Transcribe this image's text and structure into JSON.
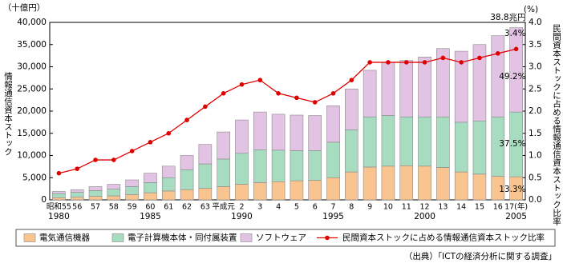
{
  "chart_data": {
    "type": "bar-line",
    "y_unit_label": "（十億円）",
    "y2_unit_label": "(%)",
    "ylabel": "情報通信資本ストック",
    "y2label": "民間資本ストックに占める情報通信資本ストック比率",
    "categories": [
      "昭和55",
      "56",
      "57",
      "58",
      "59",
      "60",
      "61",
      "62",
      "63",
      "平成元",
      "2",
      "3",
      "4",
      "5",
      "6",
      "7",
      "8",
      "9",
      "10",
      "11",
      "12",
      "13",
      "14",
      "15",
      "16",
      "17(年)"
    ],
    "year_labels": [
      "1980",
      null,
      null,
      null,
      null,
      "1985",
      null,
      null,
      null,
      null,
      "1990",
      null,
      null,
      null,
      null,
      "1995",
      null,
      null,
      null,
      null,
      "2000",
      null,
      null,
      null,
      null,
      "2005"
    ],
    "series": [
      {
        "name": "電気通信機器",
        "color": "#f9c48f",
        "values": [
          500,
          600,
          800,
          900,
          1200,
          1600,
          2000,
          2300,
          2600,
          3000,
          3500,
          3900,
          4100,
          4300,
          4400,
          5000,
          6300,
          7400,
          7600,
          7700,
          7600,
          7300,
          6300,
          5800,
          5300,
          5200
        ]
      },
      {
        "name": "電子計算機本体・同付属装置",
        "color": "#a8dcc0",
        "values": [
          900,
          1100,
          1300,
          1500,
          1800,
          2300,
          3000,
          4500,
          5500,
          6200,
          7000,
          7400,
          7100,
          6800,
          6700,
          8000,
          9500,
          11300,
          11400,
          11000,
          11100,
          11400,
          11200,
          12000,
          13400,
          14600
        ]
      },
      {
        "name": "ソフトウェア",
        "color": "#e3c3e3",
        "values": [
          500,
          600,
          900,
          1100,
          1500,
          2100,
          2600,
          3200,
          4400,
          6100,
          7500,
          8500,
          8100,
          8000,
          7900,
          8200,
          9200,
          10500,
          12000,
          12700,
          13500,
          15400,
          16000,
          17200,
          18300,
          19000
        ]
      },
      {
        "name": "民間資本ストックに占める情報通信資本ストック比率",
        "color": "#e00000",
        "axis": "y2",
        "values": [
          0.6,
          0.7,
          0.9,
          0.9,
          1.1,
          1.3,
          1.5,
          1.8,
          2.1,
          2.4,
          2.6,
          2.7,
          2.4,
          2.3,
          2.2,
          2.4,
          2.7,
          3.1,
          3.1,
          3.1,
          3.1,
          3.2,
          3.1,
          3.2,
          3.3,
          3.4
        ]
      }
    ],
    "annotations": [
      "38.8兆円",
      "3.4%",
      "49.2%",
      "37.5%",
      "13.3%"
    ],
    "ylim": [
      0,
      40000
    ],
    "yticks": [
      0,
      {
        "value": 5000,
        "label": "5,000"
      },
      {
        "value": 10000,
        "label": "10,000"
      },
      {
        "value": 15000,
        "label": "15,000"
      },
      {
        "value": 20000,
        "label": "20,000"
      },
      {
        "value": 25000,
        "label": "25,000"
      },
      {
        "value": 30000,
        "label": "30,000"
      },
      {
        "value": 35000,
        "label": "35,000"
      },
      {
        "value": 40000,
        "label": "40,000"
      }
    ],
    "y2lim": [
      0,
      4
    ],
    "y2ticks": [
      {
        "value": 0,
        "label": "0.0"
      },
      0.5,
      {
        "value": 1,
        "label": "1.0"
      },
      1.5,
      {
        "value": 2,
        "label": "2.0"
      },
      2.5,
      {
        "value": 3,
        "label": "3.0"
      },
      3.5,
      {
        "value": 4,
        "label": "4.0"
      }
    ],
    "source": "（出典）「ICTの経済分析に関する調査」"
  }
}
